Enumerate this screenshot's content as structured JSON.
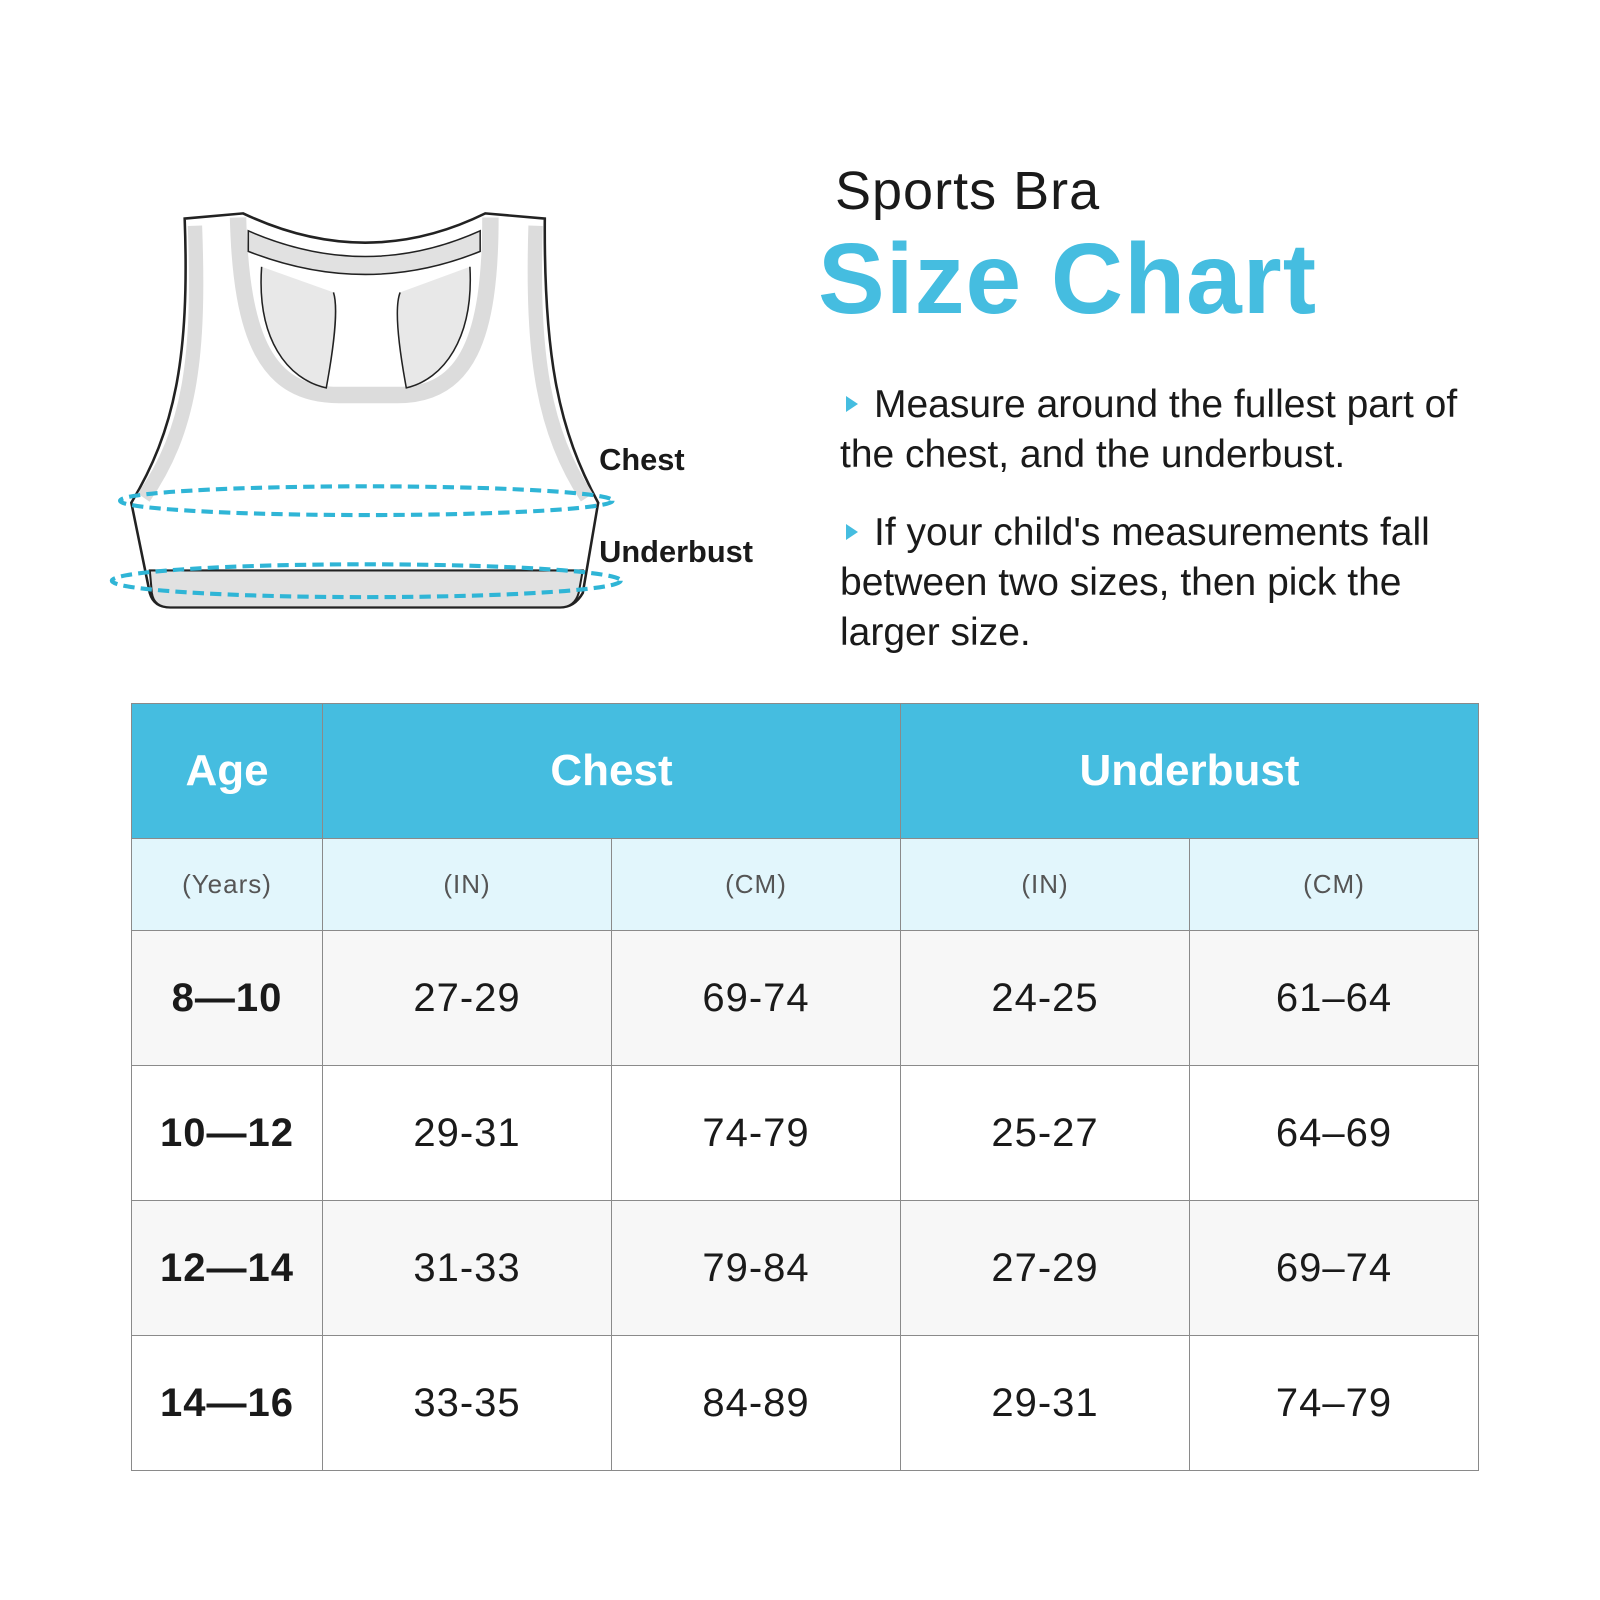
{
  "header": {
    "subtitle": "Sports Bra",
    "title": "Size Chart"
  },
  "instructions": [
    "Measure around the fullest part of the chest, and the underbust.",
    "If your child's measurements fall between two sizes, then pick the larger size."
  ],
  "diagram": {
    "chest_label": "Chest",
    "underbust_label": "Underbust"
  },
  "table": {
    "headers": [
      "Age",
      "Chest",
      "Underbust"
    ],
    "units": [
      "(Years)",
      "(IN)",
      "(CM)",
      "(IN)",
      "(CM)"
    ],
    "rows": [
      [
        "8—10",
        "27-29",
        "69-74",
        "24-25",
        "61–64"
      ],
      [
        "10—12",
        "29-31",
        "74-79",
        "25-27",
        "64–69"
      ],
      [
        "12—14",
        "31-33",
        "79-84",
        "27-29",
        "69–74"
      ],
      [
        "14—16",
        "33-35",
        "84-89",
        "29-31",
        "74–79"
      ]
    ]
  }
}
